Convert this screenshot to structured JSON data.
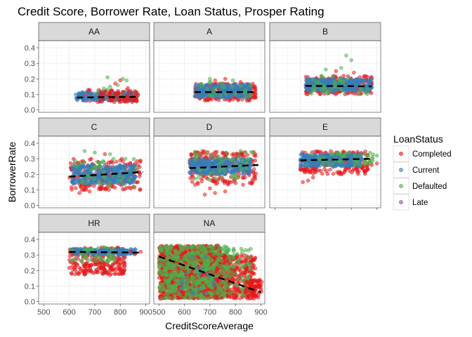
{
  "chart_data": {
    "type": "scatter",
    "title": "Credit Score, Borrower Rate, Loan Status, Prosper Rating",
    "xlabel": "CreditScoreAverage",
    "ylabel": "BorrowerRate",
    "xlim": [
      480,
      915
    ],
    "ylim": [
      -0.015,
      0.445
    ],
    "x_ticks": [
      500,
      600,
      700,
      800,
      900
    ],
    "x_tick_labels": [
      "500",
      "600",
      "700",
      "800",
      "900"
    ],
    "y_ticks": [
      0.0,
      0.1,
      0.2,
      0.3,
      0.4
    ],
    "y_tick_labels": [
      "0.0",
      "0.1",
      "0.2",
      "0.3",
      "0.4"
    ],
    "grid": true,
    "legend": {
      "title": "LoanStatus",
      "position": "right",
      "entries": [
        {
          "label": "Completed",
          "color": "#e41a1c"
        },
        {
          "label": "Current",
          "color": "#377eb8"
        },
        {
          "label": "Defaulted",
          "color": "#4daf4a"
        },
        {
          "label": "Late",
          "color": "#984ea3"
        }
      ]
    },
    "facets": [
      {
        "label": "AA",
        "trend": {
          "x": [
            630,
            860
          ],
          "y": [
            0.08,
            0.085
          ]
        },
        "clusters": [
          {
            "status": "Completed",
            "x": [
              640,
              870
            ],
            "y": [
              0.05,
              0.13
            ],
            "n": 90
          },
          {
            "status": "Current",
            "x": [
              625,
              860
            ],
            "y": [
              0.06,
              0.115
            ],
            "n": 160
          },
          {
            "status": "Defaulted",
            "x": [
              700,
              870
            ],
            "y": [
              0.06,
              0.14
            ],
            "n": 14
          },
          {
            "status": "Completed",
            "x": [
              720,
              870
            ],
            "y": [
              0.05,
              0.12
            ],
            "n": 60
          }
        ],
        "points": [
          {
            "status": "Defaulted",
            "x": [
              750,
              760,
              810,
              825,
              790
            ],
            "y": [
              0.21,
              0.15,
              0.2,
              0.19,
              0.16
            ]
          },
          {
            "status": "Completed",
            "x": [
              800,
              830,
              780
            ],
            "y": [
              0.19,
              0.14,
              0.17
            ]
          }
        ]
      },
      {
        "label": "A",
        "trend": {
          "x": [
            640,
            880
          ],
          "y": [
            0.115,
            0.115
          ]
        },
        "clusters": [
          {
            "status": "Completed",
            "x": [
              640,
              880
            ],
            "y": [
              0.06,
              0.17
            ],
            "n": 220
          },
          {
            "status": "Current",
            "x": [
              640,
              860
            ],
            "y": [
              0.08,
              0.165
            ],
            "n": 320
          },
          {
            "status": "Defaulted",
            "x": [
              660,
              860
            ],
            "y": [
              0.08,
              0.18
            ],
            "n": 25
          }
        ],
        "points": [
          {
            "status": "Completed",
            "x": [
              720,
              760,
              820
            ],
            "y": [
              0.19,
              0.2,
              0.18
            ]
          },
          {
            "status": "Defaulted",
            "x": [
              700,
              790
            ],
            "y": [
              0.2,
              0.19
            ]
          }
        ]
      },
      {
        "label": "B",
        "trend": {
          "x": [
            620,
            880
          ],
          "y": [
            0.155,
            0.152
          ]
        },
        "clusters": [
          {
            "status": "Completed",
            "x": [
              620,
              880
            ],
            "y": [
              0.1,
              0.22
            ],
            "n": 200
          },
          {
            "status": "Current",
            "x": [
              620,
              880
            ],
            "y": [
              0.12,
              0.2
            ],
            "n": 340
          },
          {
            "status": "Defaulted",
            "x": [
              640,
              870
            ],
            "y": [
              0.1,
              0.23
            ],
            "n": 40
          }
        ],
        "points": [
          {
            "status": "Defaulted",
            "x": [
              780,
              800,
              760,
              700
            ],
            "y": [
              0.35,
              0.32,
              0.27,
              0.26
            ]
          },
          {
            "status": "Completed",
            "x": [
              740,
              810
            ],
            "y": [
              0.25,
              0.24
            ]
          }
        ]
      },
      {
        "label": "C",
        "trend": {
          "x": [
            600,
            890
          ],
          "y": [
            0.185,
            0.215
          ]
        },
        "clusters": [
          {
            "status": "Completed",
            "x": [
              600,
              880
            ],
            "y": [
              0.1,
              0.3
            ],
            "n": 230
          },
          {
            "status": "Current",
            "x": [
              610,
              860
            ],
            "y": [
              0.14,
              0.26
            ],
            "n": 340
          },
          {
            "status": "Defaulted",
            "x": [
              620,
              870
            ],
            "y": [
              0.12,
              0.3
            ],
            "n": 45
          }
        ],
        "points": [
          {
            "status": "Defaulted",
            "x": [
              660,
              700,
              760,
              820
            ],
            "y": [
              0.35,
              0.34,
              0.33,
              0.3
            ]
          },
          {
            "status": "Completed",
            "x": [
              640,
              740,
              680
            ],
            "y": [
              0.08,
              0.33,
              0.09
            ]
          }
        ]
      },
      {
        "label": "D",
        "trend": {
          "x": [
            620,
            890
          ],
          "y": [
            0.24,
            0.26
          ]
        },
        "clusters": [
          {
            "status": "Completed",
            "x": [
              620,
              880
            ],
            "y": [
              0.13,
              0.35
            ],
            "n": 240
          },
          {
            "status": "Current",
            "x": [
              620,
              860
            ],
            "y": [
              0.2,
              0.3
            ],
            "n": 340
          },
          {
            "status": "Defaulted",
            "x": [
              640,
              870
            ],
            "y": [
              0.16,
              0.35
            ],
            "n": 50
          }
        ],
        "points": [
          {
            "status": "Completed",
            "x": [
              680,
              720,
              760,
              700
            ],
            "y": [
              0.07,
              0.08,
              0.09,
              0.11
            ]
          },
          {
            "status": "Defaulted",
            "x": [
              820,
              840
            ],
            "y": [
              0.35,
              0.34
            ]
          }
        ]
      },
      {
        "label": "E",
        "trend": {
          "x": [
            600,
            890
          ],
          "y": [
            0.29,
            0.3
          ]
        },
        "clusters": [
          {
            "status": "Completed",
            "x": [
              600,
              870
            ],
            "y": [
              0.2,
              0.35
            ],
            "n": 220
          },
          {
            "status": "Current",
            "x": [
              600,
              840
            ],
            "y": [
              0.25,
              0.33
            ],
            "n": 320
          },
          {
            "status": "Defaulted",
            "x": [
              620,
              900
            ],
            "y": [
              0.26,
              0.34
            ],
            "n": 50
          }
        ],
        "points": [
          {
            "status": "Completed",
            "x": [
              610,
              630,
              650,
              880,
              900
            ],
            "y": [
              0.15,
              0.16,
              0.18,
              0.26,
              0.27
            ]
          },
          {
            "status": "Defaulted",
            "x": [
              900,
              880,
              860
            ],
            "y": [
              0.32,
              0.3,
              0.31
            ]
          }
        ]
      },
      {
        "label": "HR",
        "trend": {
          "x": [
            600,
            880
          ],
          "y": [
            0.32,
            0.315
          ]
        },
        "clusters": [
          {
            "status": "Completed",
            "x": [
              600,
              820
            ],
            "y": [
              0.17,
              0.35
            ],
            "n": 260
          },
          {
            "status": "Current",
            "x": [
              600,
              860
            ],
            "y": [
              0.3,
              0.34
            ],
            "n": 160
          },
          {
            "status": "Defaulted",
            "x": [
              600,
              780
            ],
            "y": [
              0.25,
              0.35
            ],
            "n": 50
          }
        ],
        "points": [
          {
            "status": "Completed",
            "x": [
              840,
              860,
              880
            ],
            "y": [
              0.32,
              0.31,
              0.32
            ]
          },
          {
            "status": "Current",
            "x": [
              820,
              850
            ],
            "y": [
              0.33,
              0.32
            ]
          }
        ]
      },
      {
        "label": "NA",
        "trend": {
          "x": [
            500,
            900
          ],
          "y": [
            0.29,
            0.06
          ]
        },
        "clusters": [
          {
            "status": "Completed",
            "x": [
              500,
              740
            ],
            "y": [
              0.02,
              0.36
            ],
            "n": 1300
          },
          {
            "status": "Defaulted",
            "x": [
              500,
              780
            ],
            "y": [
              0.02,
              0.36
            ],
            "n": 600
          },
          {
            "status": "Completed",
            "x": [
              720,
              880
            ],
            "y": [
              0.02,
              0.3
            ],
            "n": 360
          },
          {
            "status": "Defaulted",
            "x": [
              720,
              860
            ],
            "y": [
              0.04,
              0.34
            ],
            "n": 120
          },
          {
            "status": "Completed",
            "x": [
              840,
              905
            ],
            "y": [
              0.02,
              0.14
            ],
            "n": 70
          },
          {
            "status": "Current",
            "x": [
              580,
              720
            ],
            "y": [
              0.05,
              0.3
            ],
            "n": 20
          }
        ],
        "points": []
      }
    ]
  }
}
